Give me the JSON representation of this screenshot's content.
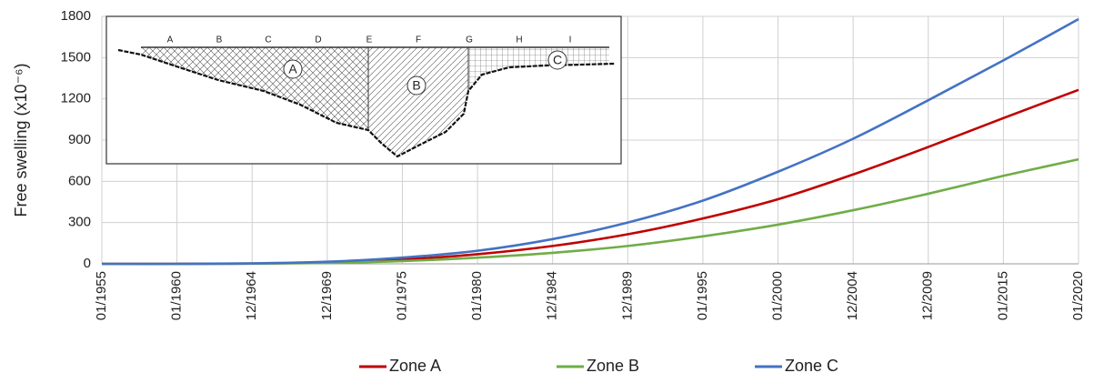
{
  "chart_data": {
    "type": "line",
    "y_label": "Free swelling (x10⁻⁶)",
    "categories": [
      "01/1955",
      "01/1960",
      "12/1964",
      "12/1969",
      "01/1975",
      "01/1980",
      "12/1984",
      "12/1989",
      "01/1995",
      "01/2000",
      "12/2004",
      "12/2009",
      "01/2015",
      "01/2020"
    ],
    "series": [
      {
        "name": "Zone A",
        "color": "#c00000",
        "values": [
          0,
          0,
          2,
          10,
          32,
          70,
          130,
          215,
          330,
          470,
          650,
          850,
          1060,
          1265
        ]
      },
      {
        "name": "Zone B",
        "color": "#70ad47",
        "values": [
          0,
          0,
          1,
          6,
          20,
          45,
          80,
          130,
          200,
          285,
          390,
          510,
          640,
          760
        ]
      },
      {
        "name": "Zone C",
        "color": "#4472c4",
        "values": [
          0,
          0,
          3,
          15,
          45,
          95,
          180,
          300,
          460,
          670,
          910,
          1190,
          1480,
          1780
        ]
      }
    ],
    "ylim": [
      0,
      1800
    ],
    "yticks": [
      0,
      300,
      600,
      900,
      1200,
      1500,
      1800
    ],
    "grid": true,
    "legend": "bottom"
  },
  "inset": {
    "section_labels": [
      "A",
      "B",
      "C",
      "D",
      "E",
      "F",
      "G",
      "H",
      "I"
    ],
    "zone_labels": [
      "A",
      "B",
      "C"
    ]
  }
}
